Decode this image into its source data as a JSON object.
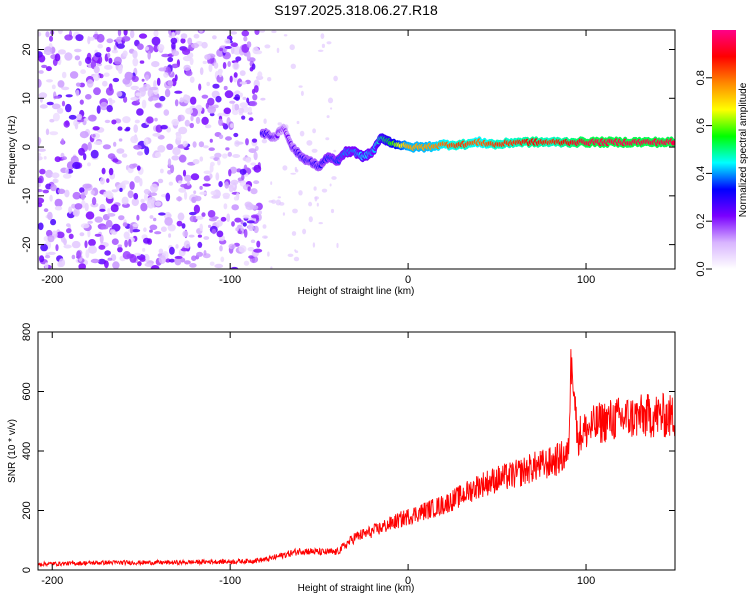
{
  "title": "S197.2025.318.06.27.R18",
  "chart_data": [
    {
      "type": "heatmap",
      "xlabel": "Height of straight line (km)",
      "ylabel": "Frequency (Hz)",
      "xlim": [
        -208,
        150
      ],
      "ylim": [
        -25,
        24
      ],
      "xticks": [
        -200,
        -100,
        0,
        100
      ],
      "yticks": [
        -20,
        -10,
        0,
        10,
        20
      ],
      "colorbar": {
        "label": "Normalized spectral amplitude",
        "range": [
          0,
          1
        ],
        "ticks": [
          "0.0",
          "0.2",
          "0.4",
          "0.6",
          "0.8"
        ],
        "colors": [
          "#ffffff",
          "#d8b4ff",
          "#7a00ff",
          "#0000ff",
          "#00ffff",
          "#00ff00",
          "#ffff00",
          "#ff8800",
          "#ff0000",
          "#ff0088"
        ]
      },
      "noise_region_x": [
        -208,
        -83
      ],
      "ridge": {
        "name": "signal ridge",
        "points": [
          {
            "x": -82,
            "y": 3,
            "amp": 0.3
          },
          {
            "x": -75,
            "y": 2,
            "amp": 0.25
          },
          {
            "x": -70,
            "y": 4,
            "amp": 0.2
          },
          {
            "x": -65,
            "y": 0,
            "amp": 0.25
          },
          {
            "x": -60,
            "y": -2,
            "amp": 0.3
          },
          {
            "x": -55,
            "y": -3,
            "amp": 0.3
          },
          {
            "x": -50,
            "y": -4,
            "amp": 0.3
          },
          {
            "x": -45,
            "y": -2,
            "amp": 0.35
          },
          {
            "x": -40,
            "y": -3,
            "amp": 0.35
          },
          {
            "x": -35,
            "y": -1,
            "amp": 0.4
          },
          {
            "x": -30,
            "y": -1,
            "amp": 0.4
          },
          {
            "x": -25,
            "y": -2,
            "amp": 0.45
          },
          {
            "x": -20,
            "y": -1,
            "amp": 0.4
          },
          {
            "x": -15,
            "y": 2,
            "amp": 0.5
          },
          {
            "x": -10,
            "y": 1,
            "amp": 0.55
          },
          {
            "x": 0,
            "y": 0,
            "amp": 0.75
          },
          {
            "x": 10,
            "y": 0,
            "amp": 0.75
          },
          {
            "x": 20,
            "y": 0.5,
            "amp": 0.8
          },
          {
            "x": 30,
            "y": 0.5,
            "amp": 0.85
          },
          {
            "x": 40,
            "y": 1,
            "amp": 0.8
          },
          {
            "x": 50,
            "y": 0.5,
            "amp": 0.85
          },
          {
            "x": 60,
            "y": 1,
            "amp": 0.85
          },
          {
            "x": 70,
            "y": 1,
            "amp": 0.9
          },
          {
            "x": 80,
            "y": 1,
            "amp": 0.85
          },
          {
            "x": 90,
            "y": 1,
            "amp": 0.9
          },
          {
            "x": 100,
            "y": 1,
            "amp": 0.95
          },
          {
            "x": 110,
            "y": 1,
            "amp": 0.95
          },
          {
            "x": 120,
            "y": 1,
            "amp": 0.95
          },
          {
            "x": 130,
            "y": 1,
            "amp": 0.95
          },
          {
            "x": 140,
            "y": 1,
            "amp": 0.95
          },
          {
            "x": 150,
            "y": 1,
            "amp": 0.95
          }
        ]
      }
    },
    {
      "type": "line",
      "xlabel": "Height of straight line (km)",
      "ylabel": "SNR (10 * v/v)",
      "xlim": [
        -208,
        150
      ],
      "ylim": [
        0,
        800
      ],
      "xticks": [
        -200,
        -100,
        0,
        100
      ],
      "yticks": [
        0,
        200,
        400,
        600,
        800
      ],
      "series": [
        {
          "color": "#ff0000",
          "x": [
            -208,
            -190,
            -170,
            -150,
            -130,
            -110,
            -100,
            -90,
            -80,
            -70,
            -60,
            -50,
            -40,
            -30,
            -20,
            -10,
            0,
            10,
            20,
            30,
            40,
            50,
            60,
            70,
            80,
            90,
            92,
            95,
            100,
            110,
            120,
            130,
            140,
            150
          ],
          "y": [
            20,
            22,
            25,
            25,
            25,
            28,
            28,
            30,
            35,
            50,
            65,
            60,
            60,
            110,
            130,
            155,
            180,
            200,
            220,
            250,
            285,
            305,
            320,
            345,
            360,
            390,
            760,
            450,
            470,
            500,
            510,
            515,
            520,
            515
          ]
        }
      ]
    }
  ]
}
